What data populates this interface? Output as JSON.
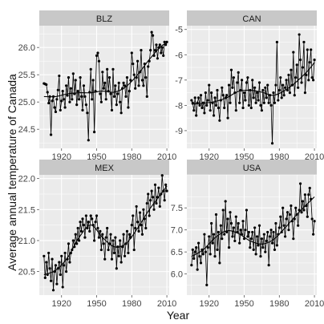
{
  "chart_data": {
    "type": "line",
    "layout": "facet-grid-2x2",
    "xlabel": "Year",
    "ylabel": "Average annual temperature of Canada",
    "grid": true,
    "smooth_trend": true,
    "colors": {
      "panel_bg": "#ebebeb",
      "grid_major": "#ffffff",
      "strip_bg": "#c8c8c8",
      "line": "#000000",
      "trend": "#000000"
    },
    "panels": [
      {
        "name": "BLZ",
        "xlim": [
          1901,
          2012
        ],
        "ylim": [
          24.15,
          26.4
        ],
        "xticks": [
          1920,
          1950,
          1980,
          2010
        ],
        "yticks": [
          24.5,
          25.0,
          25.5,
          26.0
        ],
        "ytick_labels": [
          "24.5",
          "25.0",
          "25.5",
          "26.0"
        ],
        "x": [
          1905,
          1906,
          1907,
          1908,
          1909,
          1910,
          1911,
          1912,
          1913,
          1914,
          1915,
          1916,
          1917,
          1918,
          1919,
          1920,
          1921,
          1922,
          1923,
          1924,
          1925,
          1926,
          1927,
          1928,
          1929,
          1930,
          1931,
          1932,
          1933,
          1934,
          1935,
          1936,
          1937,
          1938,
          1939,
          1940,
          1941,
          1942,
          1943,
          1944,
          1945,
          1946,
          1947,
          1948,
          1949,
          1950,
          1951,
          1952,
          1953,
          1954,
          1955,
          1956,
          1957,
          1958,
          1959,
          1960,
          1961,
          1962,
          1963,
          1964,
          1965,
          1966,
          1967,
          1968,
          1969,
          1970,
          1971,
          1972,
          1973,
          1974,
          1975,
          1976,
          1977,
          1978,
          1979,
          1980,
          1981,
          1982,
          1983,
          1984,
          1985,
          1986,
          1987,
          1988,
          1989,
          1990,
          1991,
          1992,
          1993,
          1994,
          1995,
          1996,
          1997,
          1998,
          1999,
          2000,
          2001,
          2002,
          2003,
          2004,
          2005,
          2006,
          2007,
          2008,
          2009,
          2010
        ],
        "values": [
          25.34,
          25.33,
          25.32,
          25.18,
          24.98,
          25.1,
          24.4,
          25.02,
          25.1,
          24.9,
          24.82,
          25.05,
          25.22,
          25.48,
          24.85,
          25.02,
          25.2,
          25.05,
          24.9,
          25.3,
          25.12,
          25.45,
          25.0,
          25.25,
          25.05,
          25.52,
          25.15,
          25.4,
          24.95,
          25.2,
          25.05,
          25.45,
          25.1,
          24.85,
          25.3,
          25.1,
          24.95,
          24.8,
          24.3,
          25.18,
          25.6,
          25.05,
          25.4,
          24.45,
          25.2,
          25.85,
          25.9,
          25.75,
          25.15,
          25.0,
          25.55,
          25.25,
          25.35,
          25.05,
          25.6,
          25.2,
          25.45,
          25.15,
          24.85,
          25.6,
          25.1,
          25.3,
          24.95,
          25.15,
          25.35,
          25.0,
          24.8,
          25.25,
          25.35,
          25.3,
          25.1,
          25.45,
          24.9,
          25.2,
          25.4,
          25.9,
          25.7,
          25.5,
          25.25,
          25.45,
          25.75,
          25.3,
          25.55,
          25.95,
          25.4,
          25.3,
          25.7,
          25.45,
          25.1,
          25.65,
          25.75,
          25.95,
          26.28,
          26.22,
          25.85,
          25.95,
          26.05,
          25.8,
          26.0,
          26.05,
          25.9,
          26.0,
          25.85,
          26.1,
          26.05,
          26.1
        ],
        "trend_x": [
          1905,
          1915,
          1925,
          1935,
          1945,
          1955,
          1965,
          1975,
          1985,
          1995,
          2005,
          2010
        ],
        "trend_y": [
          25.1,
          25.1,
          25.15,
          25.17,
          25.17,
          25.2,
          25.18,
          25.28,
          25.5,
          25.78,
          26.02,
          26.08
        ]
      },
      {
        "name": "CAN",
        "xlim": [
          1901,
          2012
        ],
        "ylim": [
          -9.7,
          -4.85
        ],
        "xticks": [
          1920,
          1950,
          1980,
          2010
        ],
        "yticks": [
          -9,
          -8,
          -7,
          -6,
          -5
        ],
        "ytick_labels": [
          "-9",
          "-8",
          "-7",
          "-6",
          "-5"
        ],
        "x": [
          1905,
          1906,
          1907,
          1908,
          1909,
          1910,
          1911,
          1912,
          1913,
          1914,
          1915,
          1916,
          1917,
          1918,
          1919,
          1920,
          1921,
          1922,
          1923,
          1924,
          1925,
          1926,
          1927,
          1928,
          1929,
          1930,
          1931,
          1932,
          1933,
          1934,
          1935,
          1936,
          1937,
          1938,
          1939,
          1940,
          1941,
          1942,
          1943,
          1944,
          1945,
          1946,
          1947,
          1948,
          1949,
          1950,
          1951,
          1952,
          1953,
          1954,
          1955,
          1956,
          1957,
          1958,
          1959,
          1960,
          1961,
          1962,
          1963,
          1964,
          1965,
          1966,
          1967,
          1968,
          1969,
          1970,
          1971,
          1972,
          1973,
          1974,
          1975,
          1976,
          1977,
          1978,
          1979,
          1980,
          1981,
          1982,
          1983,
          1984,
          1985,
          1986,
          1987,
          1988,
          1989,
          1990,
          1991,
          1992,
          1993,
          1994,
          1995,
          1996,
          1997,
          1998,
          1999,
          2000,
          2001,
          2002,
          2003,
          2004,
          2005,
          2006,
          2007,
          2008,
          2009,
          2010
        ],
        "values": [
          -7.8,
          -7.9,
          -8.2,
          -7.7,
          -8.4,
          -7.9,
          -7.7,
          -8.0,
          -7.6,
          -8.1,
          -7.9,
          -8.3,
          -7.5,
          -8.0,
          -7.8,
          -7.2,
          -8.2,
          -7.5,
          -7.9,
          -8.4,
          -7.7,
          -8.0,
          -7.4,
          -8.1,
          -8.6,
          -7.8,
          -7.3,
          -7.6,
          -8.1,
          -7.7,
          -7.6,
          -8.5,
          -7.2,
          -7.9,
          -6.6,
          -7.3,
          -6.9,
          -7.5,
          -8.2,
          -7.1,
          -6.7,
          -7.9,
          -7.4,
          -7.0,
          -8.1,
          -7.5,
          -7.8,
          -7.1,
          -6.9,
          -8.0,
          -7.4,
          -8.1,
          -7.0,
          -7.7,
          -7.3,
          -7.9,
          -7.5,
          -7.8,
          -7.1,
          -8.0,
          -8.2,
          -7.4,
          -7.9,
          -7.3,
          -7.7,
          -7.2,
          -7.9,
          -7.6,
          -8.0,
          -9.5,
          -7.5,
          -7.9,
          -7.2,
          -5.5,
          -7.8,
          -7.4,
          -6.9,
          -7.7,
          -7.2,
          -7.6,
          -7.3,
          -7.0,
          -7.4,
          -6.8,
          -7.5,
          -6.6,
          -7.2,
          -5.9,
          -7.6,
          -6.9,
          -6.4,
          -7.3,
          -5.2,
          -6.2,
          -7.1,
          -6.5,
          -5.5,
          -7.5,
          -6.8,
          -5.8,
          -7.0,
          -6.3,
          -5.8,
          -6.9,
          -7.0,
          -6.2
        ],
        "trend_x": [
          1905,
          1915,
          1925,
          1935,
          1945,
          1955,
          1965,
          1975,
          1985,
          1995,
          2005,
          2010
        ],
        "trend_y": [
          -7.95,
          -7.92,
          -7.85,
          -7.7,
          -7.45,
          -7.4,
          -7.48,
          -7.6,
          -7.4,
          -7.05,
          -6.6,
          -6.3
        ]
      },
      {
        "name": "MEX",
        "xlim": [
          1901,
          2012
        ],
        "ylim": [
          20.12,
          22.06
        ],
        "xticks": [
          1920,
          1950,
          1980,
          2010
        ],
        "yticks": [
          20.5,
          21.0,
          21.5,
          22.0
        ],
        "ytick_labels": [
          "20.5",
          "21.0",
          "21.5",
          "22.0"
        ],
        "x": [
          1905,
          1906,
          1907,
          1908,
          1909,
          1910,
          1911,
          1912,
          1913,
          1914,
          1915,
          1916,
          1917,
          1918,
          1919,
          1920,
          1921,
          1922,
          1923,
          1924,
          1925,
          1926,
          1927,
          1928,
          1929,
          1930,
          1931,
          1932,
          1933,
          1934,
          1935,
          1936,
          1937,
          1938,
          1939,
          1940,
          1941,
          1942,
          1943,
          1944,
          1945,
          1946,
          1947,
          1948,
          1949,
          1950,
          1951,
          1952,
          1953,
          1954,
          1955,
          1956,
          1957,
          1958,
          1959,
          1960,
          1961,
          1962,
          1963,
          1964,
          1965,
          1966,
          1967,
          1968,
          1969,
          1970,
          1971,
          1972,
          1973,
          1974,
          1975,
          1976,
          1977,
          1978,
          1979,
          1980,
          1981,
          1982,
          1983,
          1984,
          1985,
          1986,
          1987,
          1988,
          1989,
          1990,
          1991,
          1992,
          1993,
          1994,
          1995,
          1996,
          1997,
          1998,
          1999,
          2000,
          2001,
          2002,
          2003,
          2004,
          2005,
          2006,
          2007,
          2008,
          2009,
          2010
        ],
        "values": [
          20.75,
          20.4,
          20.65,
          20.45,
          20.8,
          20.55,
          20.35,
          20.7,
          20.2,
          20.5,
          20.6,
          20.3,
          20.55,
          20.65,
          20.45,
          20.75,
          20.25,
          20.6,
          20.8,
          20.5,
          20.7,
          20.95,
          20.65,
          20.8,
          20.85,
          21.0,
          20.9,
          21.1,
          20.95,
          21.2,
          21.0,
          21.3,
          21.15,
          21.35,
          21.25,
          21.05,
          21.4,
          21.2,
          21.3,
          21.15,
          21.4,
          21.35,
          21.25,
          21.0,
          21.3,
          21.4,
          21.2,
          21.05,
          21.15,
          20.85,
          21.1,
          20.95,
          20.7,
          21.05,
          21.2,
          20.85,
          20.95,
          21.1,
          20.7,
          21.0,
          20.8,
          21.05,
          20.55,
          20.9,
          20.75,
          21.0,
          20.65,
          20.9,
          21.1,
          20.75,
          20.95,
          21.15,
          20.8,
          21.1,
          21.05,
          21.25,
          21.4,
          20.85,
          21.2,
          21.55,
          21.3,
          21.15,
          21.45,
          21.25,
          21.1,
          21.5,
          21.35,
          21.2,
          21.6,
          21.75,
          21.4,
          21.65,
          21.8,
          21.7,
          21.5,
          21.9,
          21.6,
          21.7,
          21.85,
          21.55,
          21.75,
          22.05,
          21.8,
          21.65,
          21.9,
          21.8
        ],
        "trend_x": [
          1905,
          1915,
          1925,
          1935,
          1945,
          1955,
          1965,
          1975,
          1985,
          1995,
          2005,
          2010
        ],
        "trend_y": [
          20.45,
          20.52,
          20.72,
          21.05,
          21.25,
          21.05,
          20.9,
          20.95,
          21.2,
          21.5,
          21.75,
          21.88
        ]
      },
      {
        "name": "USA",
        "xlim": [
          1901,
          2012
        ],
        "ylim": [
          5.52,
          8.25
        ],
        "xticks": [
          1920,
          1950,
          1980,
          2010
        ],
        "yticks": [
          6.0,
          6.5,
          7.0,
          7.5
        ],
        "ytick_labels": [
          "6.0",
          "6.5",
          "7.0",
          "7.5"
        ],
        "x": [
          1905,
          1906,
          1907,
          1908,
          1909,
          1910,
          1911,
          1912,
          1913,
          1914,
          1915,
          1916,
          1917,
          1918,
          1919,
          1920,
          1921,
          1922,
          1923,
          1924,
          1925,
          1926,
          1927,
          1928,
          1929,
          1930,
          1931,
          1932,
          1933,
          1934,
          1935,
          1936,
          1937,
          1938,
          1939,
          1940,
          1941,
          1942,
          1943,
          1944,
          1945,
          1946,
          1947,
          1948,
          1949,
          1950,
          1951,
          1952,
          1953,
          1954,
          1955,
          1956,
          1957,
          1958,
          1959,
          1960,
          1961,
          1962,
          1963,
          1964,
          1965,
          1966,
          1967,
          1968,
          1969,
          1970,
          1971,
          1972,
          1973,
          1974,
          1975,
          1976,
          1977,
          1978,
          1979,
          1980,
          1981,
          1982,
          1983,
          1984,
          1985,
          1986,
          1987,
          1988,
          1989,
          1990,
          1991,
          1992,
          1993,
          1994,
          1995,
          1996,
          1997,
          1998,
          1999,
          2000,
          2001,
          2002,
          2003,
          2004,
          2005,
          2006,
          2007,
          2008,
          2009,
          2010
        ],
        "values": [
          6.2,
          6.55,
          6.35,
          6.5,
          6.6,
          6.1,
          6.7,
          6.4,
          6.25,
          6.55,
          6.45,
          6.9,
          6.5,
          5.75,
          6.6,
          6.85,
          6.45,
          7.15,
          6.7,
          6.9,
          6.4,
          7.35,
          6.55,
          6.95,
          6.25,
          7.1,
          6.8,
          7.45,
          6.9,
          7.65,
          6.95,
          7.25,
          6.6,
          7.4,
          7.15,
          6.85,
          7.05,
          6.75,
          7.3,
          6.95,
          7.15,
          6.7,
          7.0,
          6.9,
          7.2,
          6.8,
          7.0,
          7.45,
          6.85,
          6.95,
          6.6,
          6.8,
          6.95,
          6.55,
          7.05,
          6.45,
          6.85,
          6.65,
          7.1,
          6.4,
          6.8,
          6.6,
          6.9,
          6.5,
          6.75,
          6.95,
          6.2,
          6.85,
          7.0,
          6.7,
          6.95,
          6.55,
          7.15,
          6.65,
          6.9,
          7.05,
          7.3,
          6.95,
          7.5,
          7.1,
          6.85,
          7.25,
          7.4,
          7.0,
          7.35,
          7.55,
          7.2,
          6.8,
          7.25,
          7.5,
          7.35,
          7.1,
          7.45,
          8.05,
          7.4,
          7.65,
          7.45,
          7.8,
          7.55,
          7.3,
          7.8,
          7.95,
          7.7,
          7.25,
          6.9,
          7.2
        ],
        "trend_x": [
          1905,
          1915,
          1925,
          1935,
          1945,
          1955,
          1965,
          1975,
          1985,
          1995,
          2005,
          2010
        ],
        "trend_y": [
          6.4,
          6.55,
          6.82,
          6.98,
          6.92,
          6.75,
          6.68,
          6.78,
          7.05,
          7.35,
          7.62,
          7.75
        ]
      }
    ]
  }
}
